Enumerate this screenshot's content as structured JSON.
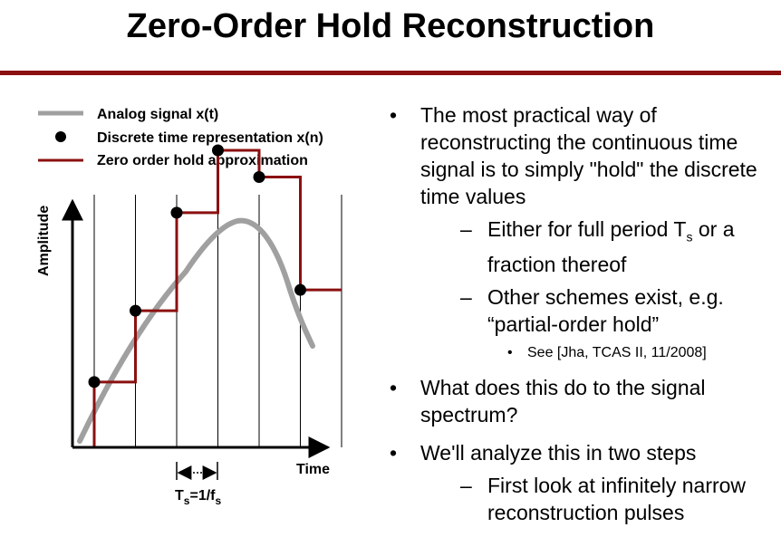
{
  "title": "Zero-Order Hold Reconstruction",
  "legend": {
    "analog": "Analog signal x(t)",
    "discrete": "Discrete time representation x(n)",
    "zoh": "Zero order hold approximation"
  },
  "axes": {
    "y_label": "Amplitude",
    "x_label": "Time"
  },
  "period_label": {
    "T": "T",
    "T_sub": "s",
    "eq": "=1/f",
    "f_sub": "s"
  },
  "colors": {
    "analog": "#a0a0a0",
    "zoh": "#8b1010",
    "points": "#000000",
    "rule": "#8b1010"
  },
  "samples": [
    {
      "n": 0,
      "value": 0.22
    },
    {
      "n": 1,
      "value": 0.46
    },
    {
      "n": 2,
      "value": 0.79
    },
    {
      "n": 3,
      "value": 1.0
    },
    {
      "n": 4,
      "value": 0.91
    },
    {
      "n": 5,
      "value": 0.53
    }
  ],
  "bullets": [
    {
      "text": "The most practical way of reconstructing the continuous time signal is to simply \"hold\" the discrete time values",
      "sub": [
        {
          "pre": "Either for full period T",
          "subscript": "s",
          "post": " or a fraction thereof"
        },
        {
          "pre": "Other schemes exist, e.g. “partial-order hold”",
          "subscript": "",
          "post": "",
          "sub": [
            {
              "text": "See [Jha, TCAS II, 11/2008]"
            }
          ]
        }
      ]
    },
    {
      "text": "What does this do to the signal spectrum?",
      "sub": []
    },
    {
      "text": "We'll analyze this in two steps",
      "sub": [
        {
          "pre": "First look at infinitely narrow reconstruction pulses",
          "subscript": "",
          "post": ""
        }
      ]
    }
  ],
  "markers": {
    "bullet": "•",
    "dash": "–"
  }
}
